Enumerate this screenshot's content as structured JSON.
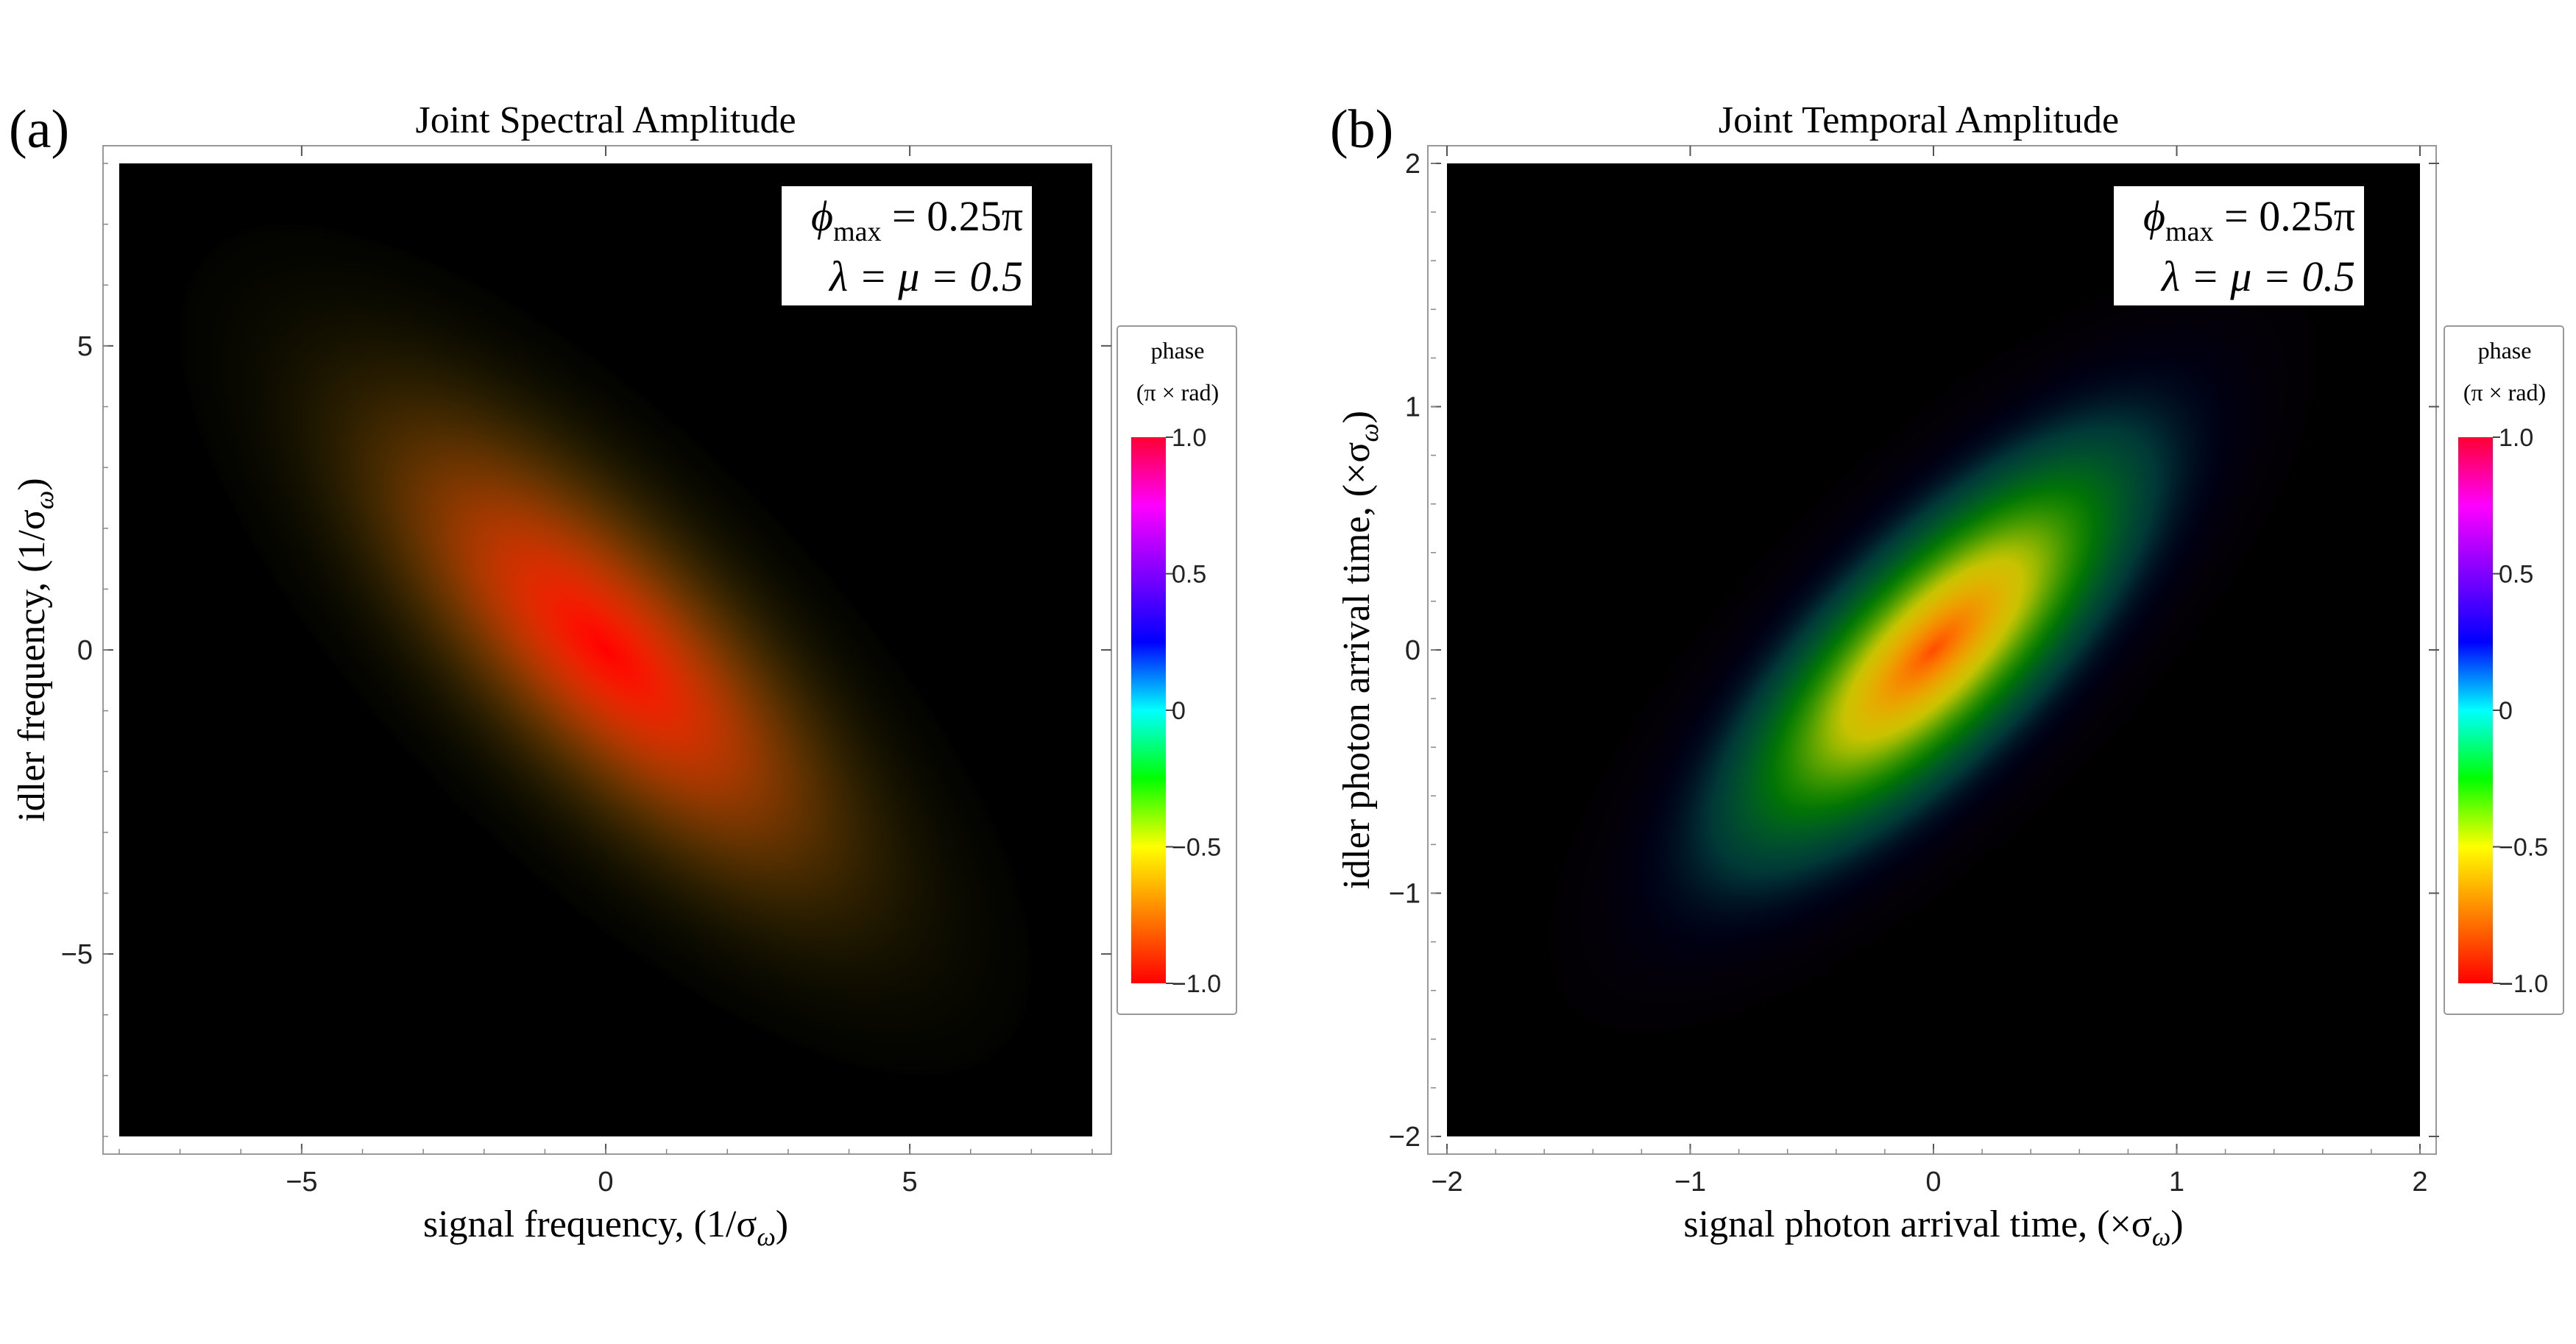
{
  "chart_data": [
    {
      "type": "heatmap",
      "panel_label": "(a)",
      "title": "Joint Spectral Amplitude",
      "xlabel": "signal frequency, (1/σ",
      "xlabel_sub": "ω",
      "xlabel_end": ")",
      "ylabel": "idler frequency, (1/σ",
      "ylabel_sub": "ω",
      "ylabel_end": ")",
      "xlim": [
        -8,
        8
      ],
      "ylim": [
        -8,
        8
      ],
      "xticks": [
        -5,
        0,
        5
      ],
      "yticks": [
        -5,
        0,
        5
      ],
      "xtick_labels": [
        "−5",
        "0",
        "5"
      ],
      "ytick_labels": [
        "−5",
        "0",
        "5"
      ],
      "annotation": {
        "line1_sym": "ϕ",
        "line1_sub": "max",
        "line1_val": " = 0.25π",
        "line2": "λ = μ = 0.5"
      },
      "distribution": {
        "center": [
          0,
          0
        ],
        "orientation": "anti-diagonal",
        "major_sigma": 4.2,
        "minor_sigma": 1.6,
        "phase_at_center": -1.0,
        "phase_at_edge": -0.45
      },
      "colorbar": {
        "title_line1": "phase",
        "title_line2": "(π × rad)",
        "ticks": [
          1.0,
          0.5,
          0,
          -0.5,
          -1.0
        ],
        "tick_labels": [
          "1.0",
          "0.5",
          "0",
          "−0.5",
          "−1.0"
        ],
        "range": [
          -1.0,
          1.0
        ]
      }
    },
    {
      "type": "heatmap",
      "panel_label": "(b)",
      "title": "Joint Temporal Amplitude",
      "xlabel": "signal photon arrival time, (×σ",
      "xlabel_sub": "ω",
      "xlabel_end": ")",
      "ylabel": "idler photon arrival time, (×σ",
      "ylabel_sub": "ω",
      "ylabel_end": ")",
      "xlim": [
        -2,
        2
      ],
      "ylim": [
        -2,
        2
      ],
      "xticks": [
        -2,
        -1,
        0,
        1,
        2
      ],
      "yticks": [
        -2,
        -1,
        0,
        1,
        2
      ],
      "xtick_labels": [
        "−2",
        "−1",
        "0",
        "1",
        "2"
      ],
      "ytick_labels": [
        "−2",
        "−1",
        "0",
        "1",
        "2"
      ],
      "annotation": {
        "line1_sym": "ϕ",
        "line1_sub": "max",
        "line1_val": " = 0.25π",
        "line2": "λ = μ = 0.5"
      },
      "distribution": {
        "center": [
          0,
          0
        ],
        "orientation": "diagonal",
        "major_sigma": 0.95,
        "minor_sigma": 0.35,
        "phase_at_center": -0.85,
        "phase_at_edge": 0.6
      },
      "colorbar": {
        "title_line1": "phase",
        "title_line2": "(π × rad)",
        "ticks": [
          1.0,
          0.5,
          0,
          -0.5,
          -1.0
        ],
        "tick_labels": [
          "1.0",
          "0.5",
          "0",
          "−0.5",
          "−1.0"
        ],
        "range": [
          -1.0,
          1.0
        ]
      }
    }
  ],
  "colors": {
    "background": "#000000",
    "colorbar_stops": [
      "#ff0000",
      "#ff7f00",
      "#ffff00",
      "#00ff00",
      "#00ffff",
      "#0000ff",
      "#8000ff",
      "#ff00ff",
      "#ff0033"
    ]
  }
}
